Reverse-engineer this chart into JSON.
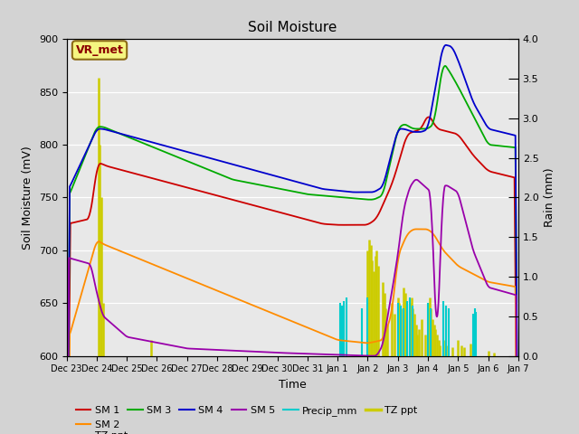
{
  "title": "Soil Moisture",
  "xlabel": "Time",
  "ylabel_left": "Soil Moisture (mV)",
  "ylabel_right": "Rain (mm)",
  "ylim_left": [
    600,
    900
  ],
  "ylim_right": [
    0.0,
    4.0
  ],
  "fig_facecolor": "#d3d3d3",
  "plot_facecolor": "#e8e8e8",
  "annotation_text": "VR_met",
  "annotation_color": "#8B0000",
  "annotation_bg": "#f5f580",
  "annotation_border": "#8B6914",
  "x_tick_labels": [
    "Dec 23",
    "Dec 24",
    "Dec 25",
    "Dec 26",
    "Dec 27",
    "Dec 28",
    "Dec 29",
    "Dec 30",
    "Dec 31",
    "Jan 1",
    "Jan 2",
    "Jan 3",
    "Jan 4",
    "Jan 5",
    "Jan 6",
    "Jan 7"
  ],
  "colors": {
    "SM1": "#cc0000",
    "SM2": "#ff8c00",
    "SM3": "#00aa00",
    "SM4": "#0000cc",
    "SM5": "#9900aa",
    "Precip": "#00cccc",
    "TZ": "#cccc00"
  }
}
